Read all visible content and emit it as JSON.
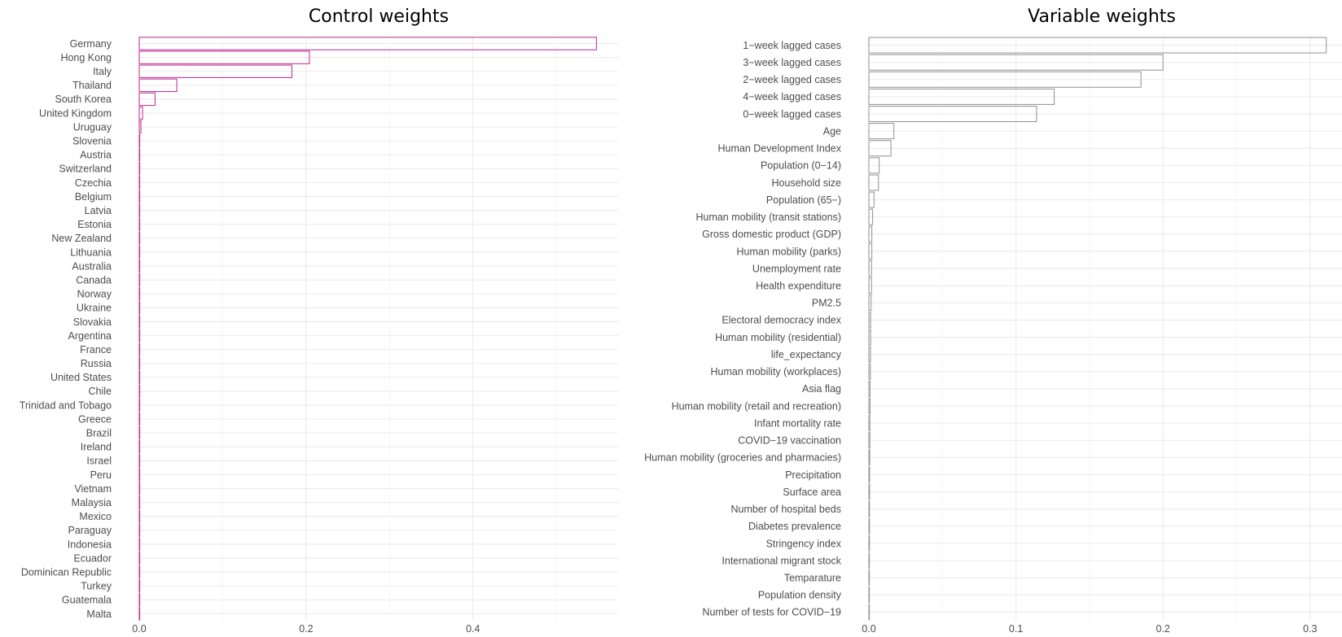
{
  "chart_data": [
    {
      "type": "bar",
      "orientation": "horizontal",
      "title": "Control weights",
      "xlabel": "",
      "ylabel": "",
      "xlim": [
        0,
        0.575
      ],
      "xticks": [
        "0.0",
        "0.2",
        "0.4"
      ],
      "grid": true,
      "bar_color": "#c2399a",
      "categories": [
        "Germany",
        "Hong Kong",
        "Italy",
        "Thailand",
        "South Korea",
        "United Kingdom",
        "Uruguay",
        "Slovenia",
        "Austria",
        "Switzerland",
        "Czechia",
        "Belgium",
        "Latvia",
        "Estonia",
        "New Zealand",
        "Lithuania",
        "Australia",
        "Canada",
        "Norway",
        "Ukraine",
        "Slovakia",
        "Argentina",
        "France",
        "Russia",
        "United States",
        "Chile",
        "Trinidad and Tobago",
        "Greece",
        "Brazil",
        "Ireland",
        "Israel",
        "Peru",
        "Vietnam",
        "Malaysia",
        "Mexico",
        "Paraguay",
        "Indonesia",
        "Ecuador",
        "Dominican Republic",
        "Turkey",
        "Guatemala",
        "Malta"
      ],
      "values": [
        0.548,
        0.204,
        0.183,
        0.045,
        0.019,
        0.004,
        0.002,
        0.0005,
        0.0004,
        0.0004,
        0.0003,
        0.0003,
        0.0003,
        0.0003,
        0.0003,
        0.0003,
        0.0003,
        0.0002,
        0.0002,
        0.0002,
        0.0002,
        0.0002,
        0.0002,
        0.0002,
        0.0002,
        0.0002,
        0.0002,
        0.0002,
        0.0002,
        0.0001,
        0.0001,
        0.0001,
        0.0001,
        0.0001,
        0.0001,
        0.0001,
        0.0001,
        0.0001,
        0.0001,
        0.0001,
        0.0001,
        0.0001
      ]
    },
    {
      "type": "bar",
      "orientation": "horizontal",
      "title": "Variable weights",
      "xlabel": "",
      "ylabel": "",
      "xlim": [
        0,
        0.322
      ],
      "xticks": [
        "0.0",
        "0.1",
        "0.2",
        "0.3"
      ],
      "grid": true,
      "bar_color": "#9a9a9a",
      "categories": [
        "1−week lagged cases",
        "3−week lagged cases",
        "2−week lagged cases",
        "4−week lagged cases",
        "0−week lagged cases",
        "Age",
        "Human Development Index",
        "Population (0−14)",
        "Household size",
        "Population (65−)",
        "Human mobility (transit stations)",
        "Gross domestic product (GDP)",
        "Human mobility (parks)",
        "Unemployment rate",
        "Health expenditure",
        "PM2.5",
        "Electoral democracy index",
        "Human mobility (residential)",
        "life_expectancy",
        "Human mobility (workplaces)",
        "Asia flag",
        "Human mobility (retail and recreation)",
        "Infant mortality rate",
        "COVID−19 vaccination",
        "Human mobility (groceries and pharmacies)",
        "Precipitation",
        "Surface area",
        "Number of hospital beds",
        "Diabetes prevalence",
        "Stringency index",
        "International migrant stock",
        "Temparature",
        "Population density",
        "Number of tests for COVID−19"
      ],
      "values": [
        0.311,
        0.2,
        0.185,
        0.126,
        0.114,
        0.017,
        0.015,
        0.007,
        0.0065,
        0.0035,
        0.0025,
        0.002,
        0.002,
        0.0018,
        0.0018,
        0.0015,
        0.0012,
        0.0012,
        0.0011,
        0.001,
        0.0008,
        0.0008,
        0.0007,
        0.0007,
        0.0006,
        0.0005,
        0.0005,
        0.0004,
        0.0004,
        0.0004,
        0.0003,
        0.0003,
        0.0003,
        0.0002
      ]
    }
  ]
}
